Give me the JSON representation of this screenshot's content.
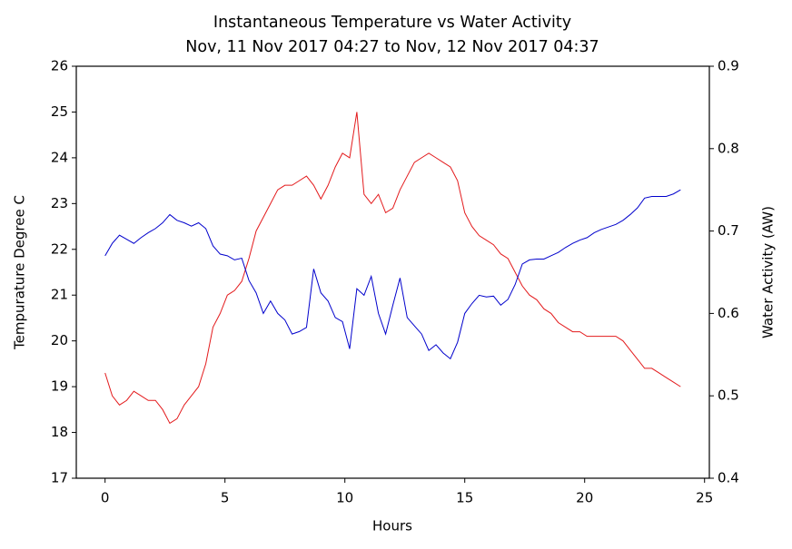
{
  "chart_data": {
    "type": "line",
    "title": "Instantaneous Temperature vs Water Activity",
    "subtitle": "Nov, 11 Nov 2017 04:27 to Nov, 12 Nov 2017 04:37",
    "x_label": "Hours",
    "y_label": "Tempurature Degree C",
    "y2_label": "Water Activity (AW)",
    "x": [
      0,
      0.3,
      0.6,
      0.9,
      1.2,
      1.5,
      1.8,
      2.1,
      2.4,
      2.7,
      3.0,
      3.3,
      3.6,
      3.9,
      4.2,
      4.5,
      4.8,
      5.1,
      5.4,
      5.7,
      6.0,
      6.3,
      6.6,
      6.9,
      7.2,
      7.5,
      7.8,
      8.1,
      8.4,
      8.7,
      9.0,
      9.3,
      9.6,
      9.9,
      10.2,
      10.5,
      10.8,
      11.1,
      11.4,
      11.7,
      12.0,
      12.3,
      12.6,
      12.9,
      13.2,
      13.5,
      13.8,
      14.1,
      14.4,
      14.7,
      15.0,
      15.3,
      15.6,
      15.9,
      16.2,
      16.5,
      16.8,
      17.1,
      17.4,
      17.7,
      18.0,
      18.3,
      18.6,
      18.9,
      19.2,
      19.5,
      19.8,
      20.1,
      20.4,
      20.7,
      21.0,
      21.3,
      21.6,
      21.9,
      22.2,
      22.5,
      22.8,
      23.1,
      23.4,
      23.7,
      24.0
    ],
    "series": [
      {
        "name": "Tempurature Degree C",
        "color": "#e31a1c",
        "axis": "y",
        "values": [
          19.3,
          18.8,
          18.6,
          18.7,
          18.9,
          18.8,
          18.7,
          18.7,
          18.5,
          18.2,
          18.3,
          18.6,
          18.8,
          19.0,
          19.5,
          20.3,
          20.6,
          21.0,
          21.1,
          21.3,
          21.8,
          22.4,
          22.7,
          23.0,
          23.3,
          23.4,
          23.4,
          23.5,
          23.6,
          23.4,
          23.1,
          23.4,
          23.8,
          24.1,
          24.0,
          25.0,
          23.2,
          23.0,
          23.2,
          22.8,
          22.9,
          23.3,
          23.6,
          23.9,
          24.0,
          24.1,
          24.0,
          23.9,
          23.8,
          23.5,
          22.8,
          22.5,
          22.3,
          22.2,
          22.1,
          21.9,
          21.8,
          21.5,
          21.2,
          21.0,
          20.9,
          20.7,
          20.6,
          20.4,
          20.3,
          20.2,
          20.2,
          20.1,
          20.1,
          20.1,
          20.1,
          20.1,
          20.0,
          19.8,
          19.6,
          19.4,
          19.4,
          19.3,
          19.2,
          19.1,
          19.0
        ]
      },
      {
        "name": "Water Activity (AW)",
        "color": "#0000cc",
        "axis": "y2",
        "values": [
          0.67,
          0.685,
          0.695,
          0.69,
          0.685,
          0.692,
          0.698,
          0.703,
          0.71,
          0.72,
          0.713,
          0.71,
          0.706,
          0.71,
          0.703,
          0.682,
          0.672,
          0.67,
          0.665,
          0.667,
          0.64,
          0.625,
          0.6,
          0.615,
          0.6,
          0.592,
          0.575,
          0.578,
          0.583,
          0.654,
          0.625,
          0.615,
          0.595,
          0.59,
          0.557,
          0.63,
          0.622,
          0.645,
          0.6,
          0.575,
          0.61,
          0.643,
          0.595,
          0.585,
          0.575,
          0.555,
          0.562,
          0.552,
          0.545,
          0.565,
          0.6,
          0.612,
          0.622,
          0.62,
          0.621,
          0.61,
          0.617,
          0.635,
          0.66,
          0.665,
          0.666,
          0.666,
          0.67,
          0.674,
          0.68,
          0.685,
          0.689,
          0.692,
          0.698,
          0.702,
          0.705,
          0.708,
          0.713,
          0.72,
          0.728,
          0.74,
          0.742,
          0.742,
          0.742,
          0.745,
          0.75
        ]
      }
    ],
    "xlim": [
      -1.2,
      25.2
    ],
    "xticks": [
      0,
      5,
      10,
      15,
      20,
      25
    ],
    "ylim": [
      17,
      26
    ],
    "yticks": [
      17,
      18,
      19,
      20,
      21,
      22,
      23,
      24,
      25,
      26
    ],
    "y2lim": [
      0.4,
      0.9
    ],
    "y2ticks": [
      0.4,
      0.5,
      0.6,
      0.7,
      0.8,
      0.9
    ],
    "grid": false
  }
}
